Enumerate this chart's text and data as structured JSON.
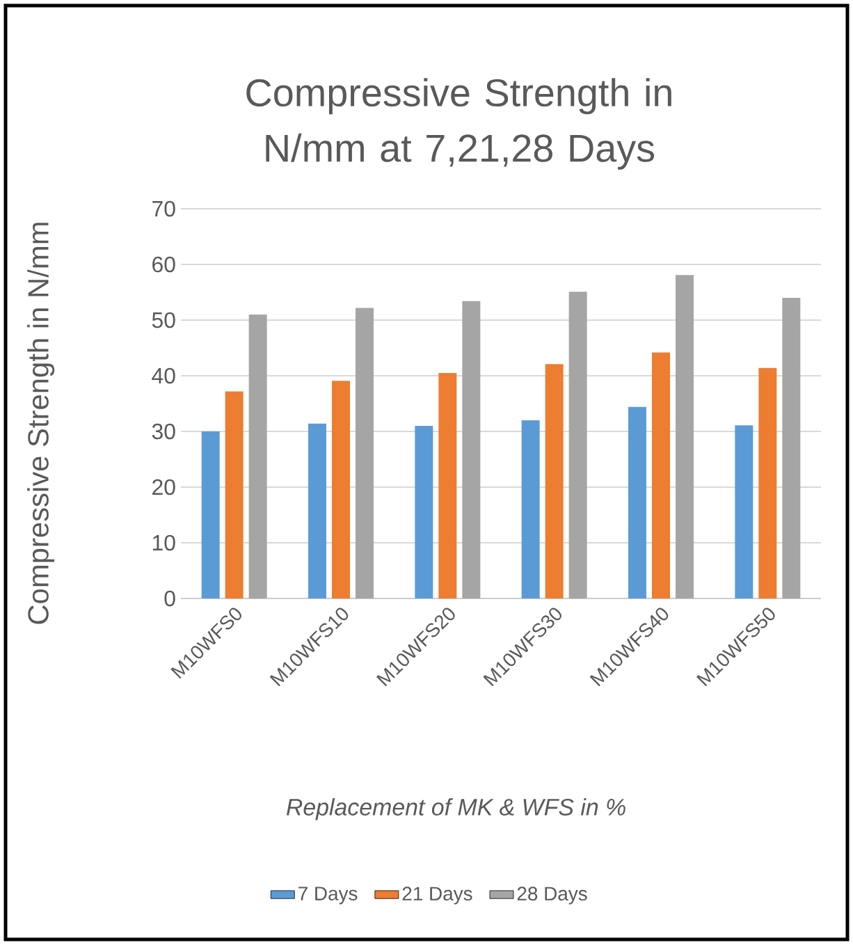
{
  "chart_data": {
    "type": "bar",
    "title": "Compressive Strength in N/mm at 7,21,28 Days",
    "xlabel": "Replacement of MK & WFS in %",
    "ylabel": "Compressive Strength in N/mm",
    "categories": [
      "M10WFS0",
      "M10WFS10",
      "M10WFS20",
      "M10WFS30",
      "M10WFS40",
      "M10WFS50"
    ],
    "series": [
      {
        "name": "7 Days",
        "color": "#5b9bd5",
        "values": [
          30,
          31.4,
          31,
          32,
          34.4,
          31.1
        ]
      },
      {
        "name": "21 Days",
        "color": "#ed7d31",
        "values": [
          37.2,
          39.1,
          40.5,
          42.1,
          44.2,
          41.4
        ]
      },
      {
        "name": "28 Days",
        "color": "#a5a5a5",
        "values": [
          51,
          52.2,
          53.4,
          55.1,
          58.1,
          54
        ]
      }
    ],
    "ylim": [
      0,
      70
    ],
    "yticks": [
      0,
      10,
      20,
      30,
      40,
      50,
      60,
      70
    ],
    "grid": "y",
    "legend": "bottom"
  }
}
